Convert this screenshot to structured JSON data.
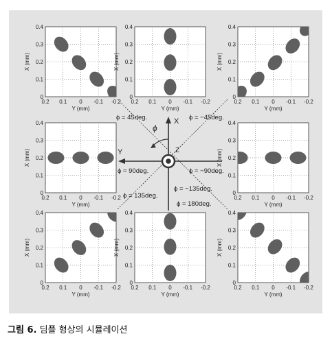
{
  "caption": {
    "label": "그림 6.",
    "text": "딤플 형상의 시뮬레이션"
  },
  "colors": {
    "background": "#e3e3e3",
    "panel": "#ffffff",
    "dimple": "#5f5f5f",
    "axis": "#333333"
  },
  "axes": {
    "xlabel": "Y (mm)",
    "ylabel": "X (mm)",
    "xticks": [
      "0.2",
      "0.1",
      "0",
      "-0.1",
      "-0.2"
    ],
    "yticks": [
      "0",
      "0.1",
      "0.2",
      "0.3",
      "0.4"
    ],
    "xlim": [
      0.2,
      -0.2
    ],
    "ylim": [
      0,
      0.4
    ]
  },
  "center": {
    "x_axis_label": "X",
    "y_axis_label": "Y",
    "z_axis_label": "Z",
    "phi_symbol": "ϕ",
    "angles": [
      {
        "label": "ϕ = 45deg."
      },
      {
        "label": "ϕ = −45deg."
      },
      {
        "label": "ϕ = 90deg."
      },
      {
        "label": "ϕ = −90deg."
      },
      {
        "label": "ϕ = 135deg."
      },
      {
        "label": "ϕ = −135deg."
      },
      {
        "label": "ϕ = 180deg."
      }
    ]
  },
  "panels": [
    {
      "id": "45",
      "dimples": [
        [
          0.11,
          0.3
        ],
        [
          0.01,
          0.195
        ],
        [
          -0.09,
          0.1
        ],
        [
          -0.19,
          0.02
        ]
      ]
    },
    {
      "id": "0",
      "dimples": [
        [
          0.0,
          0.345
        ],
        [
          0.0,
          0.195
        ],
        [
          0.0,
          0.055
        ]
      ]
    },
    {
      "id": "-45",
      "dimples": [
        [
          0.19,
          0.02
        ],
        [
          0.09,
          0.1
        ],
        [
          -0.01,
          0.195
        ],
        [
          -0.11,
          0.29
        ],
        [
          -0.19,
          0.39
        ]
      ]
    },
    {
      "id": "90",
      "dimples": [
        [
          0.14,
          0.2
        ],
        [
          0.0,
          0.2
        ],
        [
          -0.14,
          0.2
        ]
      ]
    },
    {
      "id": "-90",
      "dimples": [
        [
          0.19,
          0.2
        ],
        [
          0.0,
          0.2
        ],
        [
          -0.14,
          0.2
        ]
      ]
    },
    {
      "id": "135",
      "dimples": [
        [
          0.11,
          0.1
        ],
        [
          0.01,
          0.2
        ],
        [
          -0.09,
          0.3
        ],
        [
          -0.19,
          0.39
        ]
      ]
    },
    {
      "id": "180",
      "dimples": [
        [
          0.0,
          0.35
        ],
        [
          0.0,
          0.205
        ],
        [
          0.0,
          0.055
        ]
      ]
    },
    {
      "id": "-135",
      "dimples": [
        [
          0.19,
          0.4
        ],
        [
          0.09,
          0.3
        ],
        [
          -0.01,
          0.205
        ],
        [
          -0.11,
          0.1
        ],
        [
          -0.19,
          0.02
        ]
      ]
    }
  ]
}
